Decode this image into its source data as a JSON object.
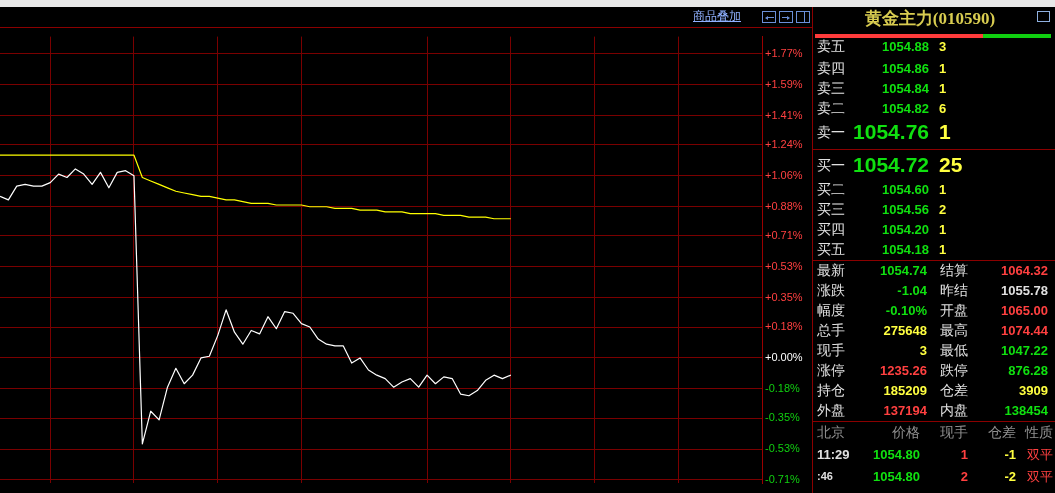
{
  "chart_data": {
    "type": "line",
    "title": "黄金主力(010590)",
    "categories": [
      null,
      null,
      null,
      null,
      null,
      null,
      null,
      null,
      null,
      null,
      null,
      null,
      null,
      null,
      null,
      null,
      null,
      null,
      null,
      null,
      null,
      null,
      null,
      null,
      null,
      null,
      null,
      null,
      null,
      null,
      null,
      null,
      null,
      null,
      null,
      null,
      null,
      null,
      null,
      null,
      null,
      null,
      null,
      null,
      null,
      null,
      null,
      null,
      null,
      null,
      null,
      null,
      null,
      null,
      null,
      null,
      null,
      null,
      null,
      null,
      null,
      null,
      null,
      null,
      null,
      null,
      null,
      null,
      null,
      null,
      null,
      null,
      null,
      null,
      null,
      null,
      null,
      null,
      null,
      null,
      null,
      null,
      null,
      null,
      null,
      null,
      null,
      null,
      null,
      null,
      null,
      null
    ],
    "ylim": [
      -0.73,
      1.87
    ],
    "yticks": [
      {
        "value": 1.77,
        "label": "+1.77%"
      },
      {
        "value": 1.59,
        "label": "+1.59%"
      },
      {
        "value": 1.41,
        "label": "+1.41%"
      },
      {
        "value": 1.24,
        "label": "+1.24%"
      },
      {
        "value": 1.06,
        "label": "+1.06%"
      },
      {
        "value": 0.88,
        "label": "+0.88%"
      },
      {
        "value": 0.71,
        "label": "+0.71%"
      },
      {
        "value": 0.53,
        "label": "+0.53%"
      },
      {
        "value": 0.35,
        "label": "+0.35%"
      },
      {
        "value": 0.18,
        "label": "+0.18%"
      },
      {
        "value": 0,
        "label": "+0.00%"
      },
      {
        "value": -0.18,
        "label": "-0.18%"
      },
      {
        "value": -0.35,
        "label": "-0.35%"
      },
      {
        "value": -0.53,
        "label": "-0.53%"
      },
      {
        "value": -0.71,
        "label": "-0.71%"
      }
    ],
    "tick_labels": "y",
    "grid": true,
    "legend": false,
    "marker": "none",
    "line_style": "solid",
    "series": [
      {
        "color": "#ffffff",
        "values": [
          0.94,
          0.92,
          1.0,
          1.01,
          1.0,
          1.0,
          1.02,
          1.07,
          1.05,
          1.1,
          1.07,
          1.01,
          1.08,
          0.99,
          1.08,
          1.09,
          1.06,
          -0.5,
          -0.31,
          -0.36,
          -0.17,
          -0.06,
          -0.15,
          -0.1,
          0.0,
          0.01,
          0.13,
          0.28,
          0.15,
          0.08,
          0.16,
          0.14,
          0.24,
          0.17,
          0.27,
          0.26,
          0.2,
          0.18,
          0.11,
          0.08,
          0.07,
          0.07,
          -0.03,
          0.0,
          -0.07,
          -0.1,
          -0.12,
          -0.17,
          -0.14,
          -0.12,
          -0.17,
          -0.1,
          -0.15,
          -0.11,
          -0.12,
          -0.21,
          -0.22,
          -0.19,
          -0.13,
          -0.1,
          -0.12,
          -0.1,
          null,
          null,
          null,
          null,
          null,
          null,
          null,
          null,
          null,
          null,
          null,
          null,
          null,
          null,
          null,
          null,
          null,
          null,
          null,
          null,
          null,
          null,
          null,
          null,
          null,
          null,
          null,
          null,
          null,
          null
        ]
      },
      {
        "color": "#ffff00",
        "values": [
          1.18,
          1.18,
          1.18,
          1.18,
          1.18,
          1.18,
          1.18,
          1.18,
          1.18,
          1.18,
          1.18,
          1.18,
          1.18,
          1.18,
          1.18,
          1.18,
          1.18,
          1.05,
          1.03,
          1.01,
          0.99,
          0.97,
          0.96,
          0.95,
          0.94,
          0.94,
          0.93,
          0.92,
          0.92,
          0.91,
          0.9,
          0.9,
          0.9,
          0.89,
          0.89,
          0.89,
          0.89,
          0.88,
          0.88,
          0.88,
          0.87,
          0.87,
          0.87,
          0.86,
          0.86,
          0.86,
          0.85,
          0.85,
          0.85,
          0.84,
          0.84,
          0.84,
          0.84,
          0.83,
          0.83,
          0.83,
          0.82,
          0.82,
          0.82,
          0.81,
          0.81,
          0.81,
          null,
          null,
          null,
          null,
          null,
          null,
          null,
          null,
          null,
          null,
          null,
          null,
          null,
          null,
          null,
          null,
          null,
          null,
          null,
          null,
          null,
          null,
          null,
          null,
          null,
          null,
          null,
          null,
          null,
          null
        ]
      }
    ],
    "annotations": [
      "商品叠加",
      "卖五",
      "1054.88",
      "3",
      "卖四",
      "1054.86",
      "1",
      "卖三",
      "1054.84",
      "1",
      "卖二",
      "1054.82",
      "6",
      "卖一",
      "1054.76",
      "1",
      "买一",
      "1054.72",
      "25",
      "买二",
      "1054.60",
      "1",
      "买三",
      "1054.56",
      "2",
      "买四",
      "1054.20",
      "1",
      "买五",
      "1054.18",
      "1",
      "最新",
      "1054.74",
      "结算",
      "1064.32",
      "涨跌",
      "-1.04",
      "昨结",
      "1055.78",
      "幅度",
      "-0.10%",
      "开盘",
      "1065.00",
      "总手",
      "275648",
      "最高",
      "1074.44",
      "现手",
      "3",
      "最低",
      "1047.22",
      "涨停",
      "1235.26",
      "跌停",
      "876.28",
      "持仓",
      "185209",
      "仓差",
      "3909",
      "外盘",
      "137194",
      "内盘",
      "138454",
      "北京",
      "价格",
      "现手",
      "仓差",
      "性质",
      "11:29",
      "1054.80",
      "1",
      "-1",
      "双平",
      ":46",
      "1054.80",
      "2",
      "-2",
      "双平"
    ]
  }
}
